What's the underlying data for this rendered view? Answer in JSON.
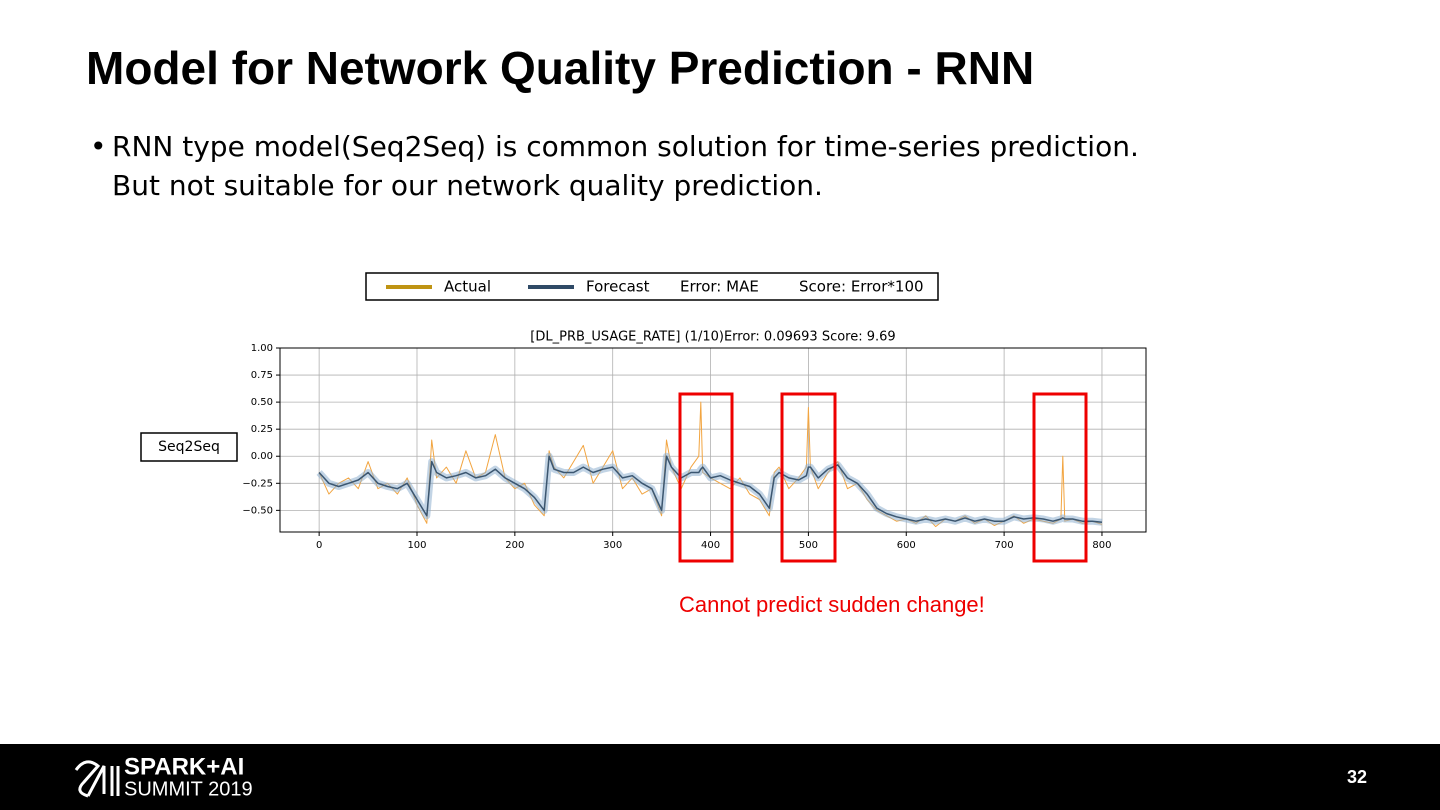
{
  "header": {
    "title": "Model for Network Quality Prediction - RNN"
  },
  "bullets": [
    "RNN type model(Seq2Seq) is common solution for time-series prediction.",
    "But not suitable for our network quality prediction."
  ],
  "legend_notes": [
    "Error: MAE",
    "Score: Error*100"
  ],
  "row_label": "Seq2Seq",
  "annotation": "Cannot predict sudden change!",
  "footer": {
    "logo_line1": "SPARK+AI",
    "logo_line2": "SUMMIT 2019",
    "page_number": "32"
  },
  "chart_data": {
    "type": "line",
    "title": "[DL_PRB_USAGE_RATE]   (1/10)Error:  0.09693   Score:  9.69",
    "x": [
      0,
      10,
      20,
      30,
      40,
      50,
      60,
      70,
      80,
      90,
      100,
      110,
      115,
      120,
      130,
      140,
      150,
      160,
      170,
      180,
      190,
      200,
      210,
      220,
      230,
      235,
      240,
      250,
      260,
      270,
      280,
      290,
      300,
      310,
      320,
      330,
      340,
      350,
      355,
      360,
      370,
      380,
      388,
      390,
      392,
      400,
      410,
      420,
      430,
      440,
      450,
      460,
      465,
      470,
      480,
      490,
      498,
      500,
      502,
      510,
      520,
      530,
      540,
      550,
      560,
      570,
      580,
      590,
      600,
      610,
      620,
      630,
      640,
      650,
      660,
      670,
      680,
      690,
      700,
      710,
      720,
      730,
      740,
      750,
      758,
      760,
      762,
      770,
      780,
      790,
      800
    ],
    "series": [
      {
        "name": "Actual",
        "color": "#f2a541",
        "values": [
          -0.15,
          -0.35,
          -0.25,
          -0.2,
          -0.3,
          -0.05,
          -0.3,
          -0.25,
          -0.35,
          -0.2,
          -0.45,
          -0.62,
          0.15,
          -0.2,
          -0.1,
          -0.25,
          0.05,
          -0.2,
          -0.15,
          0.2,
          -0.2,
          -0.3,
          -0.25,
          -0.45,
          -0.55,
          0.05,
          -0.1,
          -0.2,
          -0.05,
          0.1,
          -0.25,
          -0.1,
          0.05,
          -0.3,
          -0.2,
          -0.35,
          -0.3,
          -0.55,
          0.15,
          -0.1,
          -0.3,
          -0.1,
          0.0,
          0.5,
          -0.15,
          -0.2,
          -0.25,
          -0.3,
          -0.2,
          -0.35,
          -0.4,
          -0.55,
          -0.15,
          -0.1,
          -0.3,
          -0.2,
          -0.1,
          0.45,
          -0.1,
          -0.3,
          -0.15,
          -0.05,
          -0.3,
          -0.25,
          -0.4,
          -0.5,
          -0.55,
          -0.6,
          -0.58,
          -0.62,
          -0.55,
          -0.65,
          -0.58,
          -0.6,
          -0.55,
          -0.62,
          -0.58,
          -0.64,
          -0.6,
          -0.55,
          -0.62,
          -0.58,
          -0.6,
          -0.62,
          -0.58,
          0.0,
          -0.6,
          -0.58,
          -0.62,
          -0.6,
          -0.63
        ]
      },
      {
        "name": "Forecast",
        "color": "#3b5670",
        "values": [
          -0.15,
          -0.25,
          -0.28,
          -0.25,
          -0.22,
          -0.15,
          -0.25,
          -0.28,
          -0.3,
          -0.25,
          -0.4,
          -0.55,
          -0.05,
          -0.15,
          -0.2,
          -0.18,
          -0.15,
          -0.2,
          -0.18,
          -0.12,
          -0.2,
          -0.25,
          -0.3,
          -0.38,
          -0.5,
          0.0,
          -0.12,
          -0.15,
          -0.15,
          -0.1,
          -0.15,
          -0.12,
          -0.1,
          -0.2,
          -0.18,
          -0.25,
          -0.3,
          -0.5,
          0.0,
          -0.1,
          -0.2,
          -0.15,
          -0.15,
          -0.12,
          -0.1,
          -0.2,
          -0.18,
          -0.22,
          -0.25,
          -0.28,
          -0.35,
          -0.48,
          -0.2,
          -0.15,
          -0.2,
          -0.22,
          -0.18,
          -0.1,
          -0.1,
          -0.2,
          -0.12,
          -0.08,
          -0.2,
          -0.25,
          -0.35,
          -0.48,
          -0.53,
          -0.56,
          -0.58,
          -0.6,
          -0.58,
          -0.6,
          -0.58,
          -0.6,
          -0.57,
          -0.6,
          -0.58,
          -0.6,
          -0.6,
          -0.56,
          -0.58,
          -0.57,
          -0.58,
          -0.6,
          -0.58,
          -0.57,
          -0.58,
          -0.58,
          -0.6,
          -0.6,
          -0.61
        ]
      }
    ],
    "xlim": [
      -40,
      845
    ],
    "ylim": [
      -0.7,
      1.0
    ],
    "xticks": [
      0,
      100,
      200,
      300,
      400,
      500,
      600,
      700,
      800
    ],
    "yticks": [
      {
        "value": -0.5,
        "label": "−0.50"
      },
      {
        "value": -0.25,
        "label": "−0.25"
      },
      {
        "value": 0,
        "label": "0.00"
      },
      {
        "value": 0.25,
        "label": "0.25"
      },
      {
        "value": 0.5,
        "label": "0.50"
      },
      {
        "value": 0.75,
        "label": "0.75"
      },
      {
        "value": 1,
        "label": "1.00"
      }
    ],
    "grid": true
  }
}
